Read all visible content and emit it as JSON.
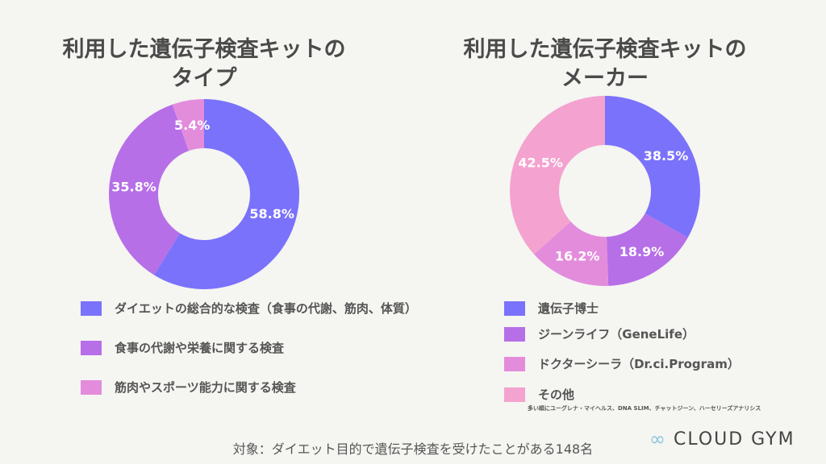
{
  "chart_data": [
    {
      "type": "pie",
      "donut": true,
      "title": "利用した遺伝子検査キットのタイプ",
      "categories": [
        "ダイエットの総合的な検査（食事の代謝、筋肉、体質）",
        "食事の代謝や栄養に関する検査",
        "筋肉やスポーツ能力に関する検査"
      ],
      "values": [
        58.8,
        35.8,
        5.4
      ],
      "labels": [
        "58.8%",
        "35.8%",
        "5.4%"
      ],
      "colors": [
        "#7a72fb",
        "#b66fe7",
        "#e38cdc"
      ],
      "legend": "bottom"
    },
    {
      "type": "pie",
      "donut": true,
      "title": "利用した遺伝子検査キットのメーカー",
      "categories": [
        "遺伝子博士",
        "ジーンライフ（GeneLife）",
        "ドクターシーラ（Dr.ci.Program）",
        "その他"
      ],
      "values": [
        38.5,
        18.9,
        16.2,
        42.5
      ],
      "labels": [
        "38.5%",
        "18.9%",
        "16.2%",
        "42.5%"
      ],
      "colors": [
        "#7a72fb",
        "#b66fe7",
        "#e38cdc",
        "#f4a2cf"
      ],
      "legend": "bottom",
      "note": "多い順にユーグレナ・マイヘルス、DNA SLIM、チャットジーン、ハーセリーズアナリシス"
    }
  ],
  "titles": [
    [
      "利用した遺伝子検査キットの",
      "タイプ"
    ],
    [
      "利用した遺伝子検査キットの",
      "メーカー"
    ]
  ],
  "footer": "対象：ダイエット目的で遺伝子検査を受けたことがある148名",
  "logo": "CLOUD GYM"
}
